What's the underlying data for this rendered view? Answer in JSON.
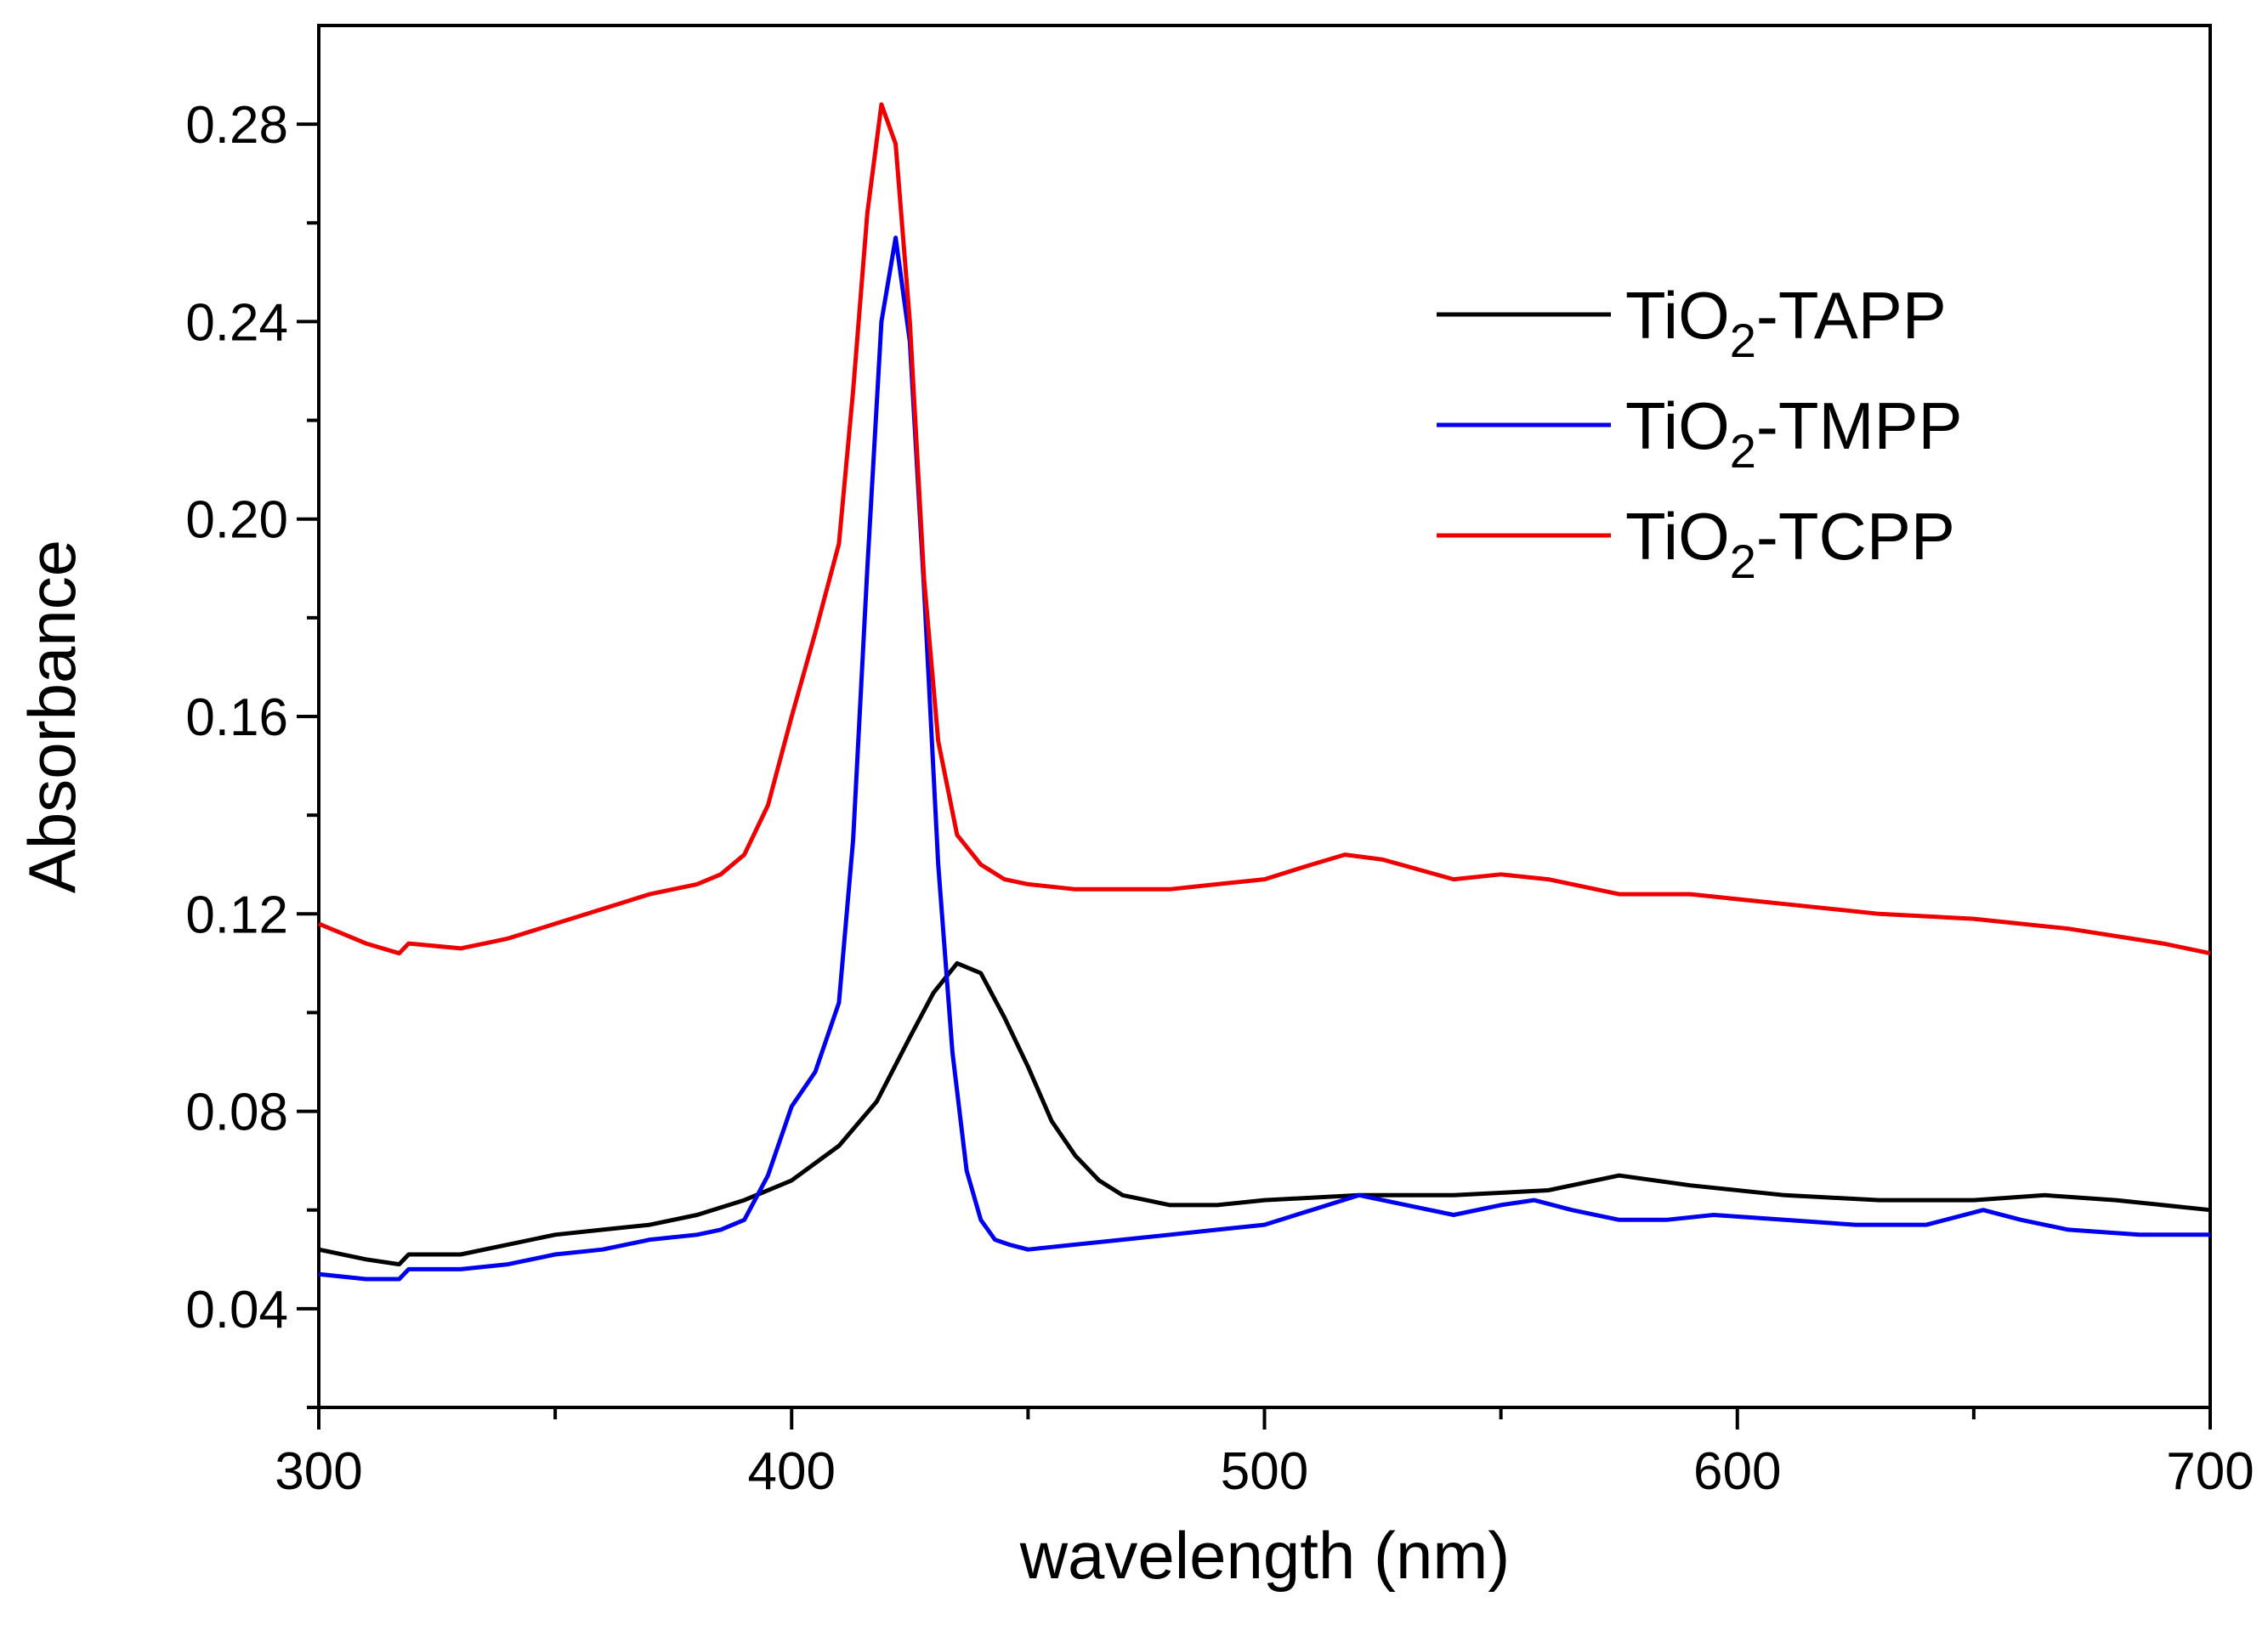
{
  "chart_data": {
    "type": "line",
    "title": "",
    "xlabel": "wavelength (nm)",
    "ylabel": "Absorbance",
    "xlim": [
      300,
      700
    ],
    "ylim": [
      0.02,
      0.3
    ],
    "x_ticks": [
      300,
      400,
      500,
      600,
      700
    ],
    "x_tick_labels": [
      "300",
      "400",
      "500",
      "600",
      "700"
    ],
    "y_ticks": [
      0.04,
      0.08,
      0.12,
      0.16,
      0.2,
      0.24,
      0.28
    ],
    "y_tick_labels": [
      "0.04",
      "0.08",
      "0.12",
      "0.16",
      "0.20",
      "0.24",
      "0.28"
    ],
    "legend_position": "top-right",
    "series": [
      {
        "name": "TiO2-TAPP",
        "legend_main": "TiO",
        "legend_sub": "2",
        "legend_suffix": "-TAPP",
        "color": "#000000",
        "x": [
          300,
          310,
          317,
          319,
          330,
          340,
          350,
          360,
          370,
          380,
          390,
          400,
          410,
          418,
          425,
          430,
          435,
          440,
          445,
          450,
          455,
          460,
          465,
          470,
          475,
          480,
          490,
          500,
          520,
          540,
          560,
          575,
          590,
          610,
          630,
          650,
          665,
          680,
          700
        ],
        "y": [
          0.052,
          0.05,
          0.049,
          0.051,
          0.051,
          0.053,
          0.055,
          0.056,
          0.057,
          0.059,
          0.062,
          0.066,
          0.073,
          0.082,
          0.095,
          0.104,
          0.11,
          0.108,
          0.099,
          0.089,
          0.078,
          0.071,
          0.066,
          0.063,
          0.062,
          0.061,
          0.061,
          0.062,
          0.063,
          0.063,
          0.064,
          0.067,
          0.065,
          0.063,
          0.062,
          0.062,
          0.063,
          0.062,
          0.06
        ]
      },
      {
        "name": "TiO2-TMPP",
        "legend_main": "TiO",
        "legend_sub": "2",
        "legend_suffix": "-TMPP",
        "color": "#0000ee",
        "x": [
          300,
          310,
          317,
          319,
          330,
          340,
          350,
          360,
          370,
          380,
          385,
          390,
          395,
          400,
          405,
          410,
          413,
          416,
          419,
          422,
          425,
          428,
          431,
          434,
          437,
          440,
          443,
          446,
          450,
          460,
          470,
          480,
          490,
          500,
          510,
          520,
          530,
          540,
          550,
          557,
          565,
          575,
          585,
          595,
          610,
          625,
          640,
          652,
          660,
          670,
          685,
          700
        ],
        "y": [
          0.047,
          0.046,
          0.046,
          0.048,
          0.048,
          0.049,
          0.051,
          0.052,
          0.054,
          0.055,
          0.056,
          0.058,
          0.067,
          0.081,
          0.088,
          0.102,
          0.135,
          0.19,
          0.24,
          0.257,
          0.236,
          0.186,
          0.13,
          0.092,
          0.068,
          0.058,
          0.054,
          0.053,
          0.052,
          0.053,
          0.054,
          0.055,
          0.056,
          0.057,
          0.06,
          0.063,
          0.061,
          0.059,
          0.061,
          0.062,
          0.06,
          0.058,
          0.058,
          0.059,
          0.058,
          0.057,
          0.057,
          0.06,
          0.058,
          0.056,
          0.055,
          0.055
        ]
      },
      {
        "name": "TiO2-TCPP",
        "legend_main": "TiO",
        "legend_sub": "2",
        "legend_suffix": "-TCPP",
        "color": "#ee0000",
        "x": [
          300,
          310,
          317,
          319,
          330,
          340,
          350,
          360,
          370,
          380,
          385,
          390,
          395,
          400,
          405,
          410,
          413,
          416,
          419,
          422,
          425,
          428,
          431,
          435,
          440,
          445,
          450,
          460,
          470,
          480,
          490,
          500,
          510,
          517,
          525,
          540,
          550,
          560,
          575,
          590,
          610,
          630,
          650,
          670,
          690,
          700
        ],
        "y": [
          0.118,
          0.114,
          0.112,
          0.114,
          0.113,
          0.115,
          0.118,
          0.121,
          0.124,
          0.126,
          0.128,
          0.132,
          0.142,
          0.16,
          0.177,
          0.195,
          0.226,
          0.262,
          0.284,
          0.276,
          0.24,
          0.188,
          0.155,
          0.136,
          0.13,
          0.127,
          0.126,
          0.125,
          0.125,
          0.125,
          0.126,
          0.127,
          0.13,
          0.132,
          0.131,
          0.127,
          0.128,
          0.127,
          0.124,
          0.124,
          0.122,
          0.12,
          0.119,
          0.117,
          0.114,
          0.112
        ]
      }
    ]
  }
}
